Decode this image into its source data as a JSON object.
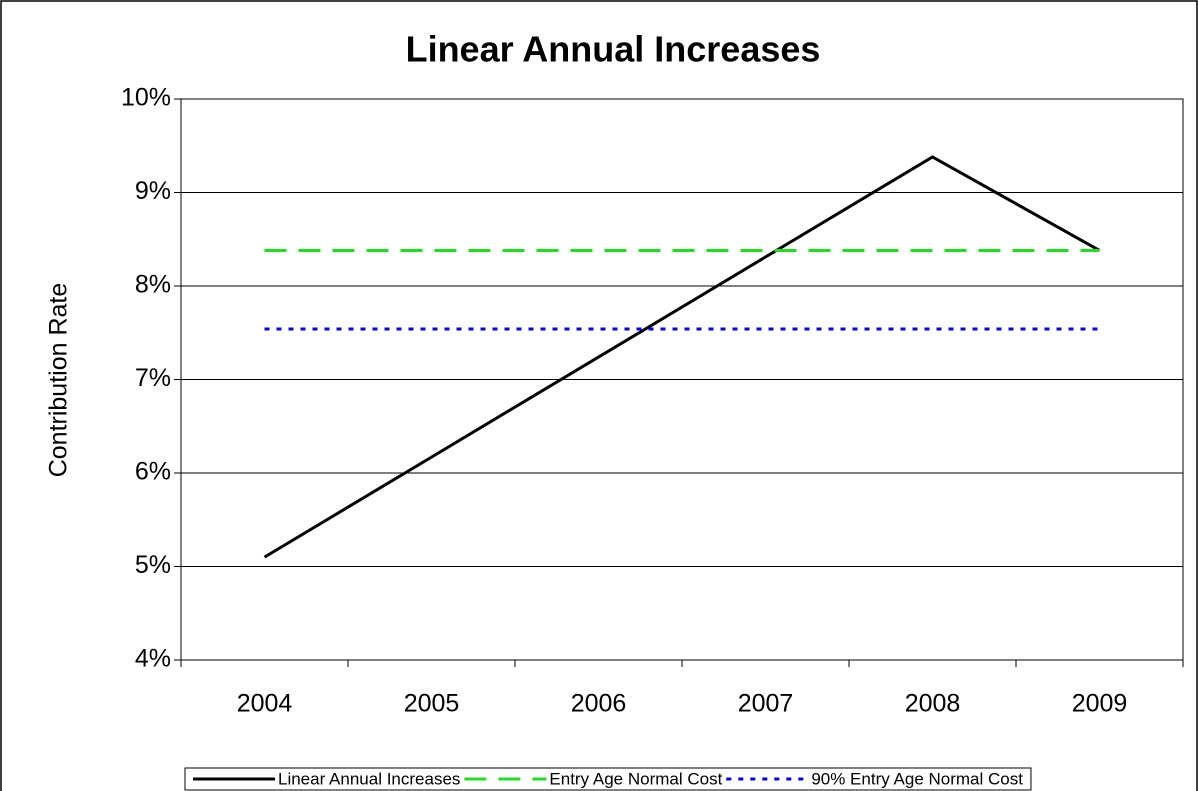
{
  "chart_data": {
    "type": "line",
    "title": "Linear Annual Increases",
    "y_label": "Contribution Rate",
    "categories": [
      "2004",
      "2005",
      "2006",
      "2007",
      "2008",
      "2009"
    ],
    "series": [
      {
        "name": "Linear Annual Increases",
        "color": "#000000",
        "dash": "solid",
        "values": [
          5.1,
          6.17,
          7.24,
          8.31,
          9.38,
          8.38
        ]
      },
      {
        "name": "Entry Age Normal Cost",
        "color": "#22dd22",
        "dash": "dashed",
        "values": [
          8.38,
          8.38,
          8.38,
          8.38,
          8.38,
          8.38
        ]
      },
      {
        "name": "90% Entry Age Normal Cost",
        "color": "#0000ee",
        "dash": "dotted",
        "values": [
          7.54,
          7.54,
          7.54,
          7.54,
          7.54,
          7.54
        ]
      }
    ],
    "ylim": [
      4,
      10
    ],
    "yticks": [
      {
        "value": 4,
        "label": "4%"
      },
      {
        "value": 5,
        "label": "5%"
      },
      {
        "value": 6,
        "label": "6%"
      },
      {
        "value": 7,
        "label": "7%"
      },
      {
        "value": 8,
        "label": "8%"
      },
      {
        "value": 9,
        "label": "9%"
      },
      {
        "value": 10,
        "label": "10%"
      }
    ],
    "grid": true,
    "legend": "bottom"
  }
}
